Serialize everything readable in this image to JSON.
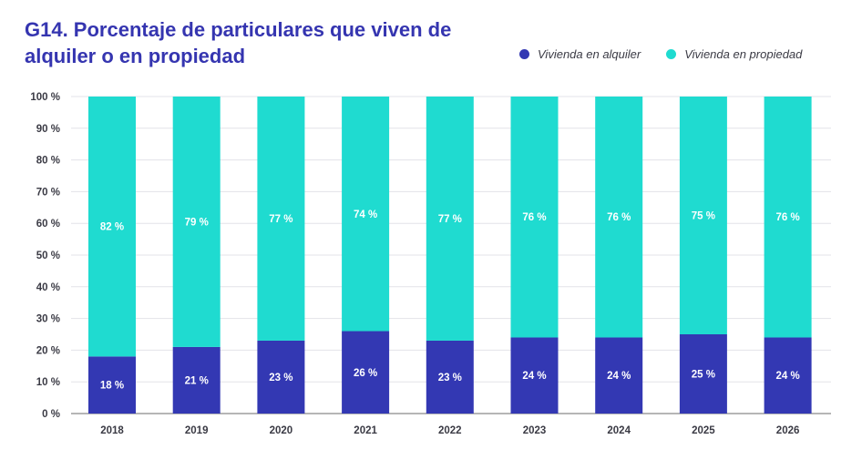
{
  "title": "G14. Porcentaje de particulares que viven de alquiler o en propiedad",
  "chart_data": {
    "type": "bar",
    "stacked": true,
    "categories": [
      "2018",
      "2019",
      "2020",
      "2021",
      "2022",
      "2023",
      "2024",
      "2025",
      "2026"
    ],
    "series": [
      {
        "name": "Vivienda en alquiler",
        "color": "#3338b3",
        "values": [
          18,
          21,
          23,
          26,
          23,
          24,
          24,
          25,
          24
        ],
        "labels": [
          "18 %",
          "21 %",
          "23 %",
          "26 %",
          "23 %",
          "24 %",
          "24 %",
          "25 %",
          "24 %"
        ]
      },
      {
        "name": "Vivienda en propiedad",
        "color": "#1fdbd0",
        "values": [
          82,
          79,
          77,
          74,
          77,
          76,
          76,
          75,
          76
        ],
        "labels": [
          "82 %",
          "79 %",
          "77 %",
          "74 %",
          "77 %",
          "76 %",
          "76 %",
          "75 %",
          "76 %"
        ]
      }
    ],
    "ylim": [
      0,
      100
    ],
    "yticks": [
      "0 %",
      "10 %",
      "20 %",
      "30 %",
      "40 %",
      "50 %",
      "60 %",
      "70 %",
      "80 %",
      "90 %",
      "100 %"
    ],
    "grid": true,
    "legend": "top-right"
  }
}
